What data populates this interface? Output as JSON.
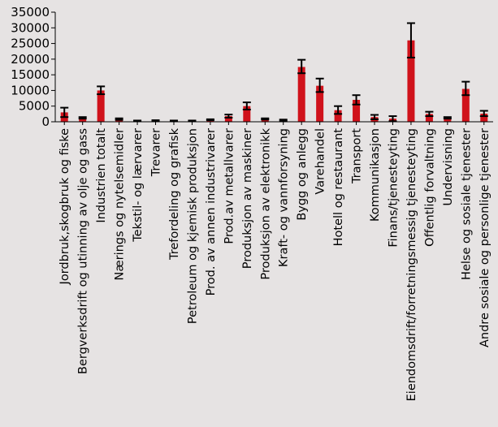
{
  "chart_data": {
    "type": "bar",
    "title": "",
    "xlabel": "",
    "ylabel": "",
    "ylim": [
      0,
      35000
    ],
    "yticks": [
      0,
      5000,
      10000,
      15000,
      20000,
      25000,
      30000,
      35000
    ],
    "grid": false,
    "legend": "none",
    "bar_color": "#d0121b",
    "categories": [
      "Jordbruk,skogbruk og fiske",
      "Bergverksdrift og utinning av olje og gass",
      "Industrien totalt",
      "Nærings og nytelsemidler",
      "Tekstil- og lærvarer",
      "Trevarer",
      "Trefordeling og grafisk",
      "Petroleum og kjemisk produksjon",
      "Prod. av annen industrivarer",
      "Prod.av metallvarer",
      "Produksjon av maskiner",
      "Produksjon av elektronikk",
      "Kraft- og vannforsyning",
      "Bygg og anlegg",
      "Varehandel",
      "Hotell og restaurant",
      "Transport",
      "Kommunikasjon",
      "Finans/tjenesteyting",
      "Eiendomsdrift/forretningsmessig tjenesteyting",
      "Offentlig forvaltning",
      "Undervisning",
      "Helse og sosiale tjenester",
      "Andre sosiale og personlige tjenester"
    ],
    "values": [
      3000,
      1200,
      10000,
      800,
      300,
      400,
      300,
      300,
      600,
      1800,
      5000,
      900,
      500,
      17500,
      11500,
      3700,
      7000,
      1500,
      1000,
      26000,
      2500,
      1200,
      10500,
      2600
    ],
    "error_low": [
      1500,
      1000,
      8800,
      600,
      200,
      300,
      200,
      200,
      500,
      1300,
      3900,
      700,
      300,
      15500,
      9500,
      2500,
      5500,
      800,
      200,
      20500,
      1800,
      1000,
      8500,
      1800
    ],
    "error_high": [
      4500,
      1500,
      11300,
      1100,
      400,
      500,
      400,
      400,
      800,
      2300,
      6200,
      1100,
      700,
      19800,
      13800,
      5000,
      8500,
      2200,
      1800,
      31500,
      3200,
      1500,
      12800,
      3500
    ]
  }
}
